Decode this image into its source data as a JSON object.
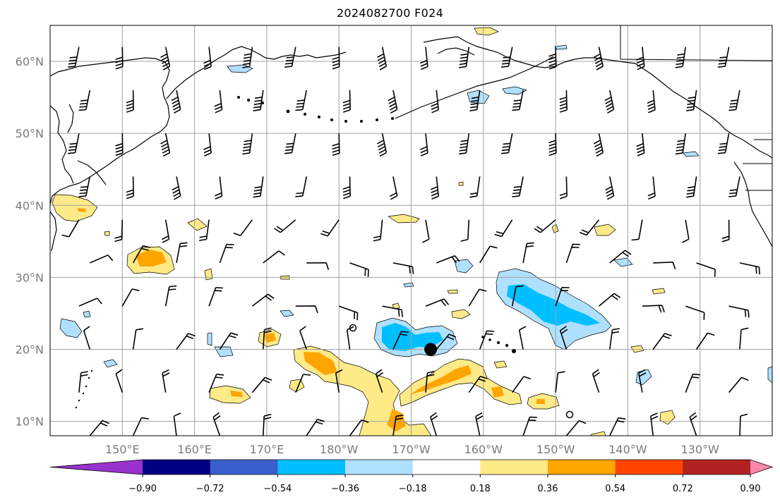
{
  "title": "2024082700 F024",
  "map": {
    "lat_range": [
      8,
      65
    ],
    "lon_range_east": [
      140,
      240
    ],
    "lat_labels": [
      {
        "lat": 60,
        "text": "60°N"
      },
      {
        "lat": 50,
        "text": "50°N"
      },
      {
        "lat": 40,
        "text": "40°N"
      },
      {
        "lat": 30,
        "text": "30°N"
      },
      {
        "lat": 20,
        "text": "20°N"
      },
      {
        "lat": 10,
        "text": "10°N"
      }
    ],
    "lon_labels": [
      {
        "lon": 150,
        "text": "150°E"
      },
      {
        "lon": 160,
        "text": "160°E"
      },
      {
        "lon": 170,
        "text": "170°E"
      },
      {
        "lon": 180,
        "text": "180°W"
      },
      {
        "lon": 190,
        "text": "170°W"
      },
      {
        "lon": 200,
        "text": "160°W"
      },
      {
        "lon": 210,
        "text": "150°W"
      },
      {
        "lon": 220,
        "text": "140°W"
      },
      {
        "lon": 230,
        "text": "130°W"
      }
    ],
    "center_marker": {
      "lat": 20,
      "lon": 192.7
    },
    "colors": {
      "grid": "#a0a0a0",
      "coast": "#000000",
      "neg_strong": "#00bfff",
      "neg_weak": "#b0e0ff",
      "pos_weak": "#ffea88",
      "pos_med": "#ffa500",
      "pos_strong": "#ff4500"
    }
  },
  "colorbar": {
    "colors": [
      "#9932cc",
      "#000080",
      "#3a5fcd",
      "#00bfff",
      "#b0e0ff",
      "#ffffff",
      "#ffea88",
      "#ffa500",
      "#ff4500",
      "#b22222",
      "#ff88aa"
    ],
    "ticks": [
      "−0.90",
      "−0.72",
      "−0.54",
      "−0.36",
      "−0.18",
      "0.18",
      "0.36",
      "0.54",
      "0.72",
      "0.90"
    ]
  }
}
